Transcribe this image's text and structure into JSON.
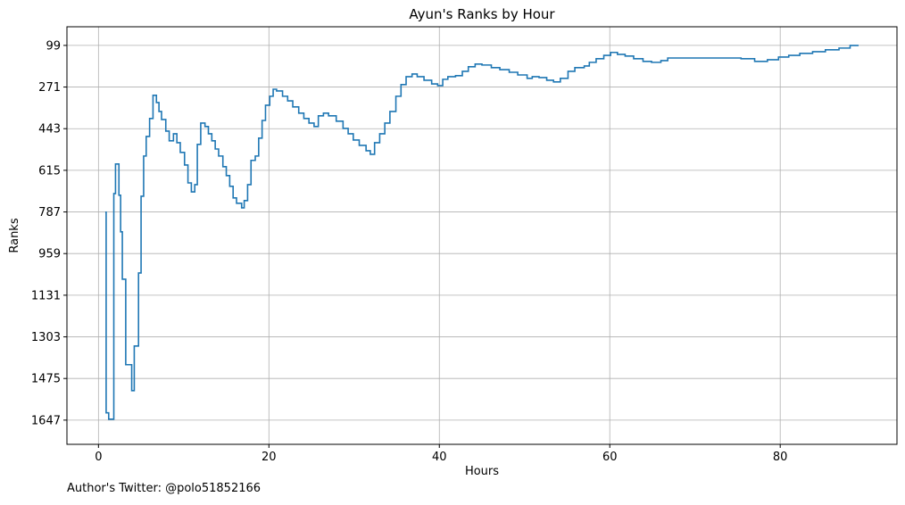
{
  "chart_data": {
    "type": "line",
    "step": "post",
    "title": "Ayun's Ranks by Hour",
    "xlabel": "Hours",
    "ylabel": "Ranks",
    "footer": "Author's Twitter: @polo51852166",
    "x": [
      0.8,
      0.9,
      1.2,
      1.8,
      2.0,
      2.4,
      2.6,
      2.8,
      3.2,
      3.9,
      4.2,
      4.7,
      5.0,
      5.3,
      5.6,
      6.0,
      6.4,
      6.8,
      7.1,
      7.4,
      7.9,
      8.3,
      8.8,
      9.2,
      9.6,
      10.1,
      10.5,
      10.9,
      11.3,
      11.6,
      12.0,
      12.5,
      12.9,
      13.3,
      13.7,
      14.1,
      14.6,
      15.0,
      15.4,
      15.8,
      16.2,
      16.8,
      17.1,
      17.5,
      17.9,
      18.4,
      18.8,
      19.2,
      19.6,
      20.1,
      20.5,
      20.9,
      21.6,
      22.2,
      22.8,
      23.5,
      24.1,
      24.7,
      25.3,
      25.8,
      26.4,
      27.0,
      27.9,
      28.7,
      29.3,
      29.9,
      30.6,
      31.4,
      31.9,
      32.4,
      33.0,
      33.6,
      34.2,
      34.9,
      35.5,
      36.1,
      36.8,
      37.4,
      38.2,
      39.1,
      39.8,
      40.4,
      41.0,
      41.9,
      42.7,
      43.4,
      44.2,
      45.0,
      46.1,
      47.1,
      48.2,
      49.2,
      50.3,
      50.9,
      51.7,
      52.6,
      53.4,
      54.2,
      55.1,
      55.9,
      57.0,
      57.6,
      58.4,
      59.3,
      60.1,
      60.9,
      61.8,
      62.8,
      63.9,
      64.9,
      66.0,
      66.8,
      71.2,
      75.4,
      77.0,
      78.5,
      79.8,
      81.0,
      82.3,
      83.8,
      85.3,
      86.9,
      88.2,
      89.2
    ],
    "series": [
      {
        "name": "Ranks",
        "color": "#1f77b4",
        "values": [
          788,
          1617,
          1643,
          711,
          589,
          718,
          869,
          1065,
          1418,
          1525,
          1341,
          1039,
          722,
          556,
          475,
          401,
          305,
          335,
          372,
          405,
          453,
          493,
          464,
          501,
          541,
          593,
          667,
          704,
          674,
          508,
          420,
          434,
          464,
          493,
          527,
          556,
          600,
          637,
          681,
          729,
          751,
          770,
          740,
          674,
          574,
          556,
          482,
          409,
          346,
          309,
          280,
          287,
          309,
          328,
          353,
          379,
          401,
          420,
          434,
          390,
          379,
          390,
          412,
          442,
          464,
          490,
          512,
          534,
          549,
          501,
          464,
          420,
          372,
          309,
          261,
          228,
          217,
          228,
          243,
          258,
          265,
          239,
          228,
          224,
          206,
          187,
          176,
          180,
          191,
          199,
          210,
          221,
          235,
          228,
          232,
          243,
          250,
          235,
          206,
          191,
          184,
          169,
          154,
          140,
          128,
          136,
          143,
          154,
          165,
          169,
          162,
          151,
          151,
          154,
          165,
          158,
          147,
          140,
          132,
          125,
          117,
          110,
          99,
          99
        ]
      }
    ],
    "xlim": [
      -3.7,
      93.7
    ],
    "xticks": [
      0,
      20,
      40,
      60,
      80
    ],
    "ylim": [
      1747,
      22
    ],
    "yticks": [
      99,
      271,
      443,
      615,
      787,
      959,
      1131,
      1303,
      1475,
      1647
    ],
    "grid": true
  }
}
